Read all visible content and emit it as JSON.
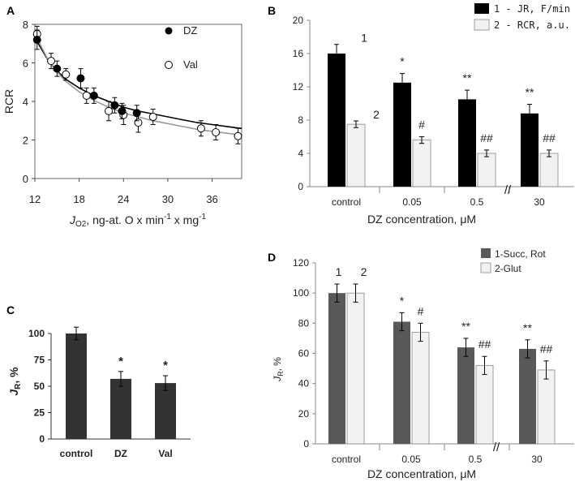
{
  "chart_data": [
    {
      "panel": "A",
      "type": "scatter",
      "title": "",
      "xlabel_prefix": "J",
      "xlabel_sub": "O2",
      "xlabel_rest": ", ng-at. O x min",
      "xlabel_sup1": "-1",
      "xlabel_mid": " x mg",
      "xlabel_sup2": "-1",
      "ylabel": "RCR",
      "xlim": [
        12,
        40
      ],
      "ylim": [
        0,
        8
      ],
      "xticks": [
        "12",
        "18",
        "24",
        "30",
        "36"
      ],
      "xtick_values": [
        12,
        18,
        24,
        30,
        36
      ],
      "yticks": [
        "0",
        "2",
        "4",
        "6",
        "8"
      ],
      "ytick_values": [
        0,
        2,
        4,
        6,
        8
      ],
      "series": [
        {
          "name": "DZ",
          "marker": "filled",
          "x": [
            12.3,
            15.0,
            18.2,
            20.0,
            22.8,
            23.8,
            25.8
          ],
          "y": [
            7.2,
            5.7,
            5.2,
            4.3,
            3.8,
            3.5,
            3.4
          ],
          "err": [
            0.5,
            0.4,
            0.5,
            0.4,
            0.4,
            0.4,
            0.4
          ]
        },
        {
          "name": "Val",
          "marker": "open",
          "x": [
            12.3,
            14.2,
            16.2,
            19.0,
            22.0,
            24.0,
            26.0,
            28.0,
            34.5,
            36.5,
            39.5
          ],
          "y": [
            7.5,
            6.1,
            5.4,
            4.3,
            3.5,
            3.3,
            2.9,
            3.2,
            2.6,
            2.4,
            2.2
          ],
          "err": [
            0.4,
            0.4,
            0.3,
            0.4,
            0.5,
            0.5,
            0.5,
            0.4,
            0.4,
            0.4,
            0.4
          ]
        }
      ],
      "fit_curves": [
        {
          "name": "DZ fit",
          "x": [
            12,
            14,
            16,
            18,
            20,
            22,
            24,
            26,
            28,
            30,
            32,
            34,
            36,
            38,
            40
          ],
          "y": [
            7.3,
            6.0,
            5.2,
            4.7,
            4.3,
            4.0,
            3.7,
            3.5,
            3.35,
            3.2,
            3.05,
            2.9,
            2.8,
            2.7,
            2.6
          ]
        },
        {
          "name": "Val fit",
          "x": [
            12,
            14,
            16,
            18,
            20,
            22,
            24,
            26,
            28,
            30,
            32,
            34,
            36,
            38,
            40
          ],
          "y": [
            7.5,
            6.0,
            5.1,
            4.5,
            4.05,
            3.7,
            3.4,
            3.2,
            3.0,
            2.85,
            2.7,
            2.55,
            2.45,
            2.35,
            2.25
          ]
        }
      ]
    },
    {
      "panel": "B",
      "type": "bar",
      "xlabel": "DZ concentration, μM",
      "ylabel": "",
      "ylim": [
        0,
        20
      ],
      "yticks": [
        "0",
        "4",
        "8",
        "12",
        "16",
        "20"
      ],
      "ytick_values": [
        0,
        4,
        8,
        12,
        16,
        20
      ],
      "categories": [
        "control",
        "0.05",
        "0.5",
        "30"
      ],
      "axis_break": "//",
      "series": [
        {
          "name": "1 - JR, F/min",
          "color": "#000000",
          "values": [
            16.0,
            12.5,
            10.5,
            8.8
          ],
          "err": [
            1.1,
            1.1,
            1.1,
            1.1
          ]
        },
        {
          "name": "2 - RCR, a.u.",
          "color": "#f2f2f2",
          "values": [
            7.5,
            5.6,
            4.0,
            4.0
          ],
          "err": [
            0.4,
            0.4,
            0.4,
            0.4
          ]
        }
      ],
      "annotations_s1": [
        "1",
        "*",
        "**",
        "**"
      ],
      "annotations_s2": [
        "2",
        "#",
        "##",
        "##"
      ]
    },
    {
      "panel": "C",
      "type": "bar",
      "ylabel_main": "J",
      "ylabel_sub": "R",
      "ylabel_rest": ", %",
      "ylim": [
        0,
        100
      ],
      "yticks": [
        "0",
        "25",
        "50",
        "75",
        "100"
      ],
      "ytick_values": [
        0,
        25,
        50,
        75,
        100
      ],
      "categories": [
        "control",
        "DZ",
        "Val"
      ],
      "series": [
        {
          "name": "JR",
          "color": "#333333",
          "values": [
            100,
            57,
            53
          ],
          "err": [
            6,
            7,
            7
          ]
        }
      ],
      "annotations": [
        "",
        "*",
        "*"
      ]
    },
    {
      "panel": "D",
      "type": "bar",
      "xlabel": "DZ concentration, μM",
      "ylabel_main": "J",
      "ylabel_sub": "R",
      "ylabel_rest": ", %",
      "ylim": [
        0,
        120
      ],
      "yticks": [
        "0",
        "20",
        "40",
        "60",
        "80",
        "100",
        "120"
      ],
      "ytick_values": [
        0,
        20,
        40,
        60,
        80,
        100,
        120
      ],
      "categories": [
        "control",
        "0.05",
        "0.5",
        "30"
      ],
      "axis_break": "//",
      "series": [
        {
          "name": "1-Succ, Rot",
          "color": "#595959",
          "values": [
            100,
            81,
            64,
            63
          ],
          "err": [
            6,
            6,
            6,
            6
          ]
        },
        {
          "name": "2-Glut",
          "color": "#f2f2f2",
          "values": [
            100,
            74,
            52,
            49
          ],
          "err": [
            6,
            6,
            6,
            6
          ]
        }
      ],
      "annotations_s1": [
        "1",
        "*",
        "**",
        "**"
      ],
      "annotations_s2": [
        "2",
        "#",
        "##",
        "##"
      ]
    }
  ]
}
